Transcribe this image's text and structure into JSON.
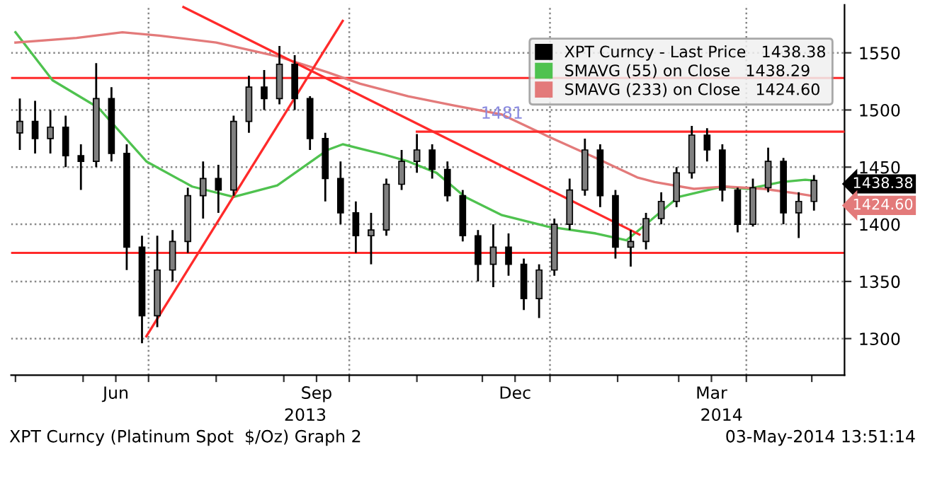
{
  "chart_data": {
    "type": "candlestick",
    "series": [
      {
        "name": "XPT Curncy - Last Price   1438.38",
        "color": "#000000",
        "x": [
          "2013-05-03",
          "2013-05-10",
          "2013-05-17",
          "2013-05-24",
          "2013-05-31",
          "2013-06-07",
          "2013-06-14",
          "2013-06-21",
          "2013-06-28",
          "2013-07-05",
          "2013-07-12",
          "2013-07-19",
          "2013-07-26",
          "2013-08-02",
          "2013-08-09",
          "2013-08-16",
          "2013-08-23",
          "2013-08-30",
          "2013-09-06",
          "2013-09-13",
          "2013-09-20",
          "2013-09-27",
          "2013-10-04",
          "2013-10-11",
          "2013-10-18",
          "2013-10-25",
          "2013-11-01",
          "2013-11-08",
          "2013-11-15",
          "2013-11-22",
          "2013-11-29",
          "2013-12-06",
          "2013-12-13",
          "2013-12-20",
          "2013-12-27",
          "2014-01-03",
          "2014-01-10",
          "2014-01-17",
          "2014-01-24",
          "2014-01-31",
          "2014-02-07",
          "2014-02-14",
          "2014-02-21",
          "2014-02-28",
          "2014-03-07",
          "2014-03-14",
          "2014-03-21",
          "2014-03-28",
          "2014-04-04",
          "2014-04-11",
          "2014-04-18",
          "2014-04-25",
          "2014-05-02"
        ],
        "ohlc": [
          [
            1480,
            1510,
            1465,
            1490
          ],
          [
            1490,
            1508,
            1462,
            1475
          ],
          [
            1475,
            1500,
            1462,
            1485
          ],
          [
            1485,
            1495,
            1450,
            1460
          ],
          [
            1460,
            1470,
            1430,
            1455
          ],
          [
            1455,
            1541,
            1450,
            1510
          ],
          [
            1510,
            1520,
            1455,
            1462
          ],
          [
            1462,
            1470,
            1360,
            1380
          ],
          [
            1380,
            1390,
            1296,
            1320
          ],
          [
            1320,
            1390,
            1310,
            1360
          ],
          [
            1360,
            1395,
            1350,
            1385
          ],
          [
            1385,
            1432,
            1375,
            1425
          ],
          [
            1425,
            1455,
            1405,
            1440
          ],
          [
            1440,
            1452,
            1410,
            1430
          ],
          [
            1430,
            1495,
            1425,
            1490
          ],
          [
            1490,
            1530,
            1480,
            1520
          ],
          [
            1520,
            1535,
            1500,
            1510
          ],
          [
            1510,
            1556,
            1505,
            1540
          ],
          [
            1540,
            1548,
            1500,
            1510
          ],
          [
            1510,
            1512,
            1465,
            1475
          ],
          [
            1475,
            1480,
            1420,
            1440
          ],
          [
            1440,
            1455,
            1400,
            1410
          ],
          [
            1410,
            1420,
            1375,
            1390
          ],
          [
            1390,
            1410,
            1365,
            1395
          ],
          [
            1395,
            1440,
            1390,
            1435
          ],
          [
            1435,
            1465,
            1430,
            1455
          ],
          [
            1455,
            1479,
            1445,
            1465
          ],
          [
            1465,
            1470,
            1440,
            1448
          ],
          [
            1448,
            1455,
            1420,
            1425
          ],
          [
            1425,
            1430,
            1385,
            1390
          ],
          [
            1390,
            1395,
            1350,
            1365
          ],
          [
            1365,
            1400,
            1345,
            1380
          ],
          [
            1380,
            1392,
            1355,
            1365
          ],
          [
            1365,
            1370,
            1325,
            1335
          ],
          [
            1335,
            1365,
            1318,
            1360
          ],
          [
            1360,
            1405,
            1355,
            1400
          ],
          [
            1400,
            1440,
            1395,
            1430
          ],
          [
            1430,
            1475,
            1425,
            1465
          ],
          [
            1465,
            1470,
            1415,
            1425
          ],
          [
            1425,
            1430,
            1370,
            1380
          ],
          [
            1380,
            1395,
            1363,
            1385
          ],
          [
            1385,
            1410,
            1378,
            1405
          ],
          [
            1405,
            1428,
            1400,
            1420
          ],
          [
            1420,
            1450,
            1415,
            1445
          ],
          [
            1445,
            1486,
            1440,
            1478
          ],
          [
            1478,
            1484,
            1455,
            1465
          ],
          [
            1465,
            1470,
            1420,
            1430
          ],
          [
            1430,
            1432,
            1393,
            1400
          ],
          [
            1400,
            1440,
            1398,
            1432
          ],
          [
            1432,
            1467,
            1428,
            1455
          ],
          [
            1455,
            1458,
            1400,
            1410
          ],
          [
            1410,
            1428,
            1388,
            1420
          ],
          [
            1420,
            1443,
            1412,
            1438.38
          ]
        ]
      },
      {
        "type": "line",
        "name": "SMAVG (55) on Close   1438.29",
        "color": "#4fc24f",
        "x": [
          "2013-05-01",
          "2013-05-18",
          "2013-06-08",
          "2013-06-30",
          "2013-07-21",
          "2013-08-09",
          "2013-08-29",
          "2013-09-21",
          "2013-09-28",
          "2013-10-17",
          "2013-10-28",
          "2013-11-10",
          "2013-11-23",
          "2013-12-10",
          "2013-12-31",
          "2014-01-22",
          "2014-02-05",
          "2014-02-14",
          "2014-03-01",
          "2014-03-21",
          "2014-04-02",
          "2014-04-17",
          "2014-04-28",
          "2014-05-02"
        ],
        "values": [
          1568,
          1526,
          1502,
          1455,
          1433,
          1424,
          1434,
          1465,
          1470,
          1461,
          1455,
          1445,
          1424,
          1408,
          1398,
          1392,
          1386,
          1400,
          1424,
          1433,
          1431,
          1437,
          1439,
          1438.29
        ]
      },
      {
        "type": "line",
        "name": "SMAVG (233) on Close   1424.60",
        "color": "#e37a7a",
        "x": [
          "2013-05-01",
          "2013-05-29",
          "2013-06-19",
          "2013-07-06",
          "2013-08-01",
          "2013-08-29",
          "2013-09-21",
          "2013-10-06",
          "2013-10-28",
          "2013-11-18",
          "2013-12-10",
          "2013-12-31",
          "2014-01-22",
          "2014-02-10",
          "2014-02-18",
          "2014-03-08",
          "2014-03-22",
          "2014-04-09",
          "2014-04-24",
          "2014-05-02"
        ],
        "values": [
          1559,
          1563,
          1568,
          1565,
          1559,
          1547,
          1533,
          1523,
          1512,
          1504,
          1496,
          1477,
          1458,
          1441,
          1437,
          1431,
          1433,
          1431,
          1427,
          1424.6
        ]
      },
      {
        "type": "line",
        "color": "#ff2a2a",
        "x": [
          "2013-07-17",
          "2014-02-11"
        ],
        "values": [
          1590,
          1391
        ]
      },
      {
        "type": "line",
        "color": "#ff2a2a",
        "x": [
          "2013-06-30",
          "2013-09-28"
        ],
        "values": [
          1302,
          1578
        ]
      },
      {
        "type": "line",
        "color": "#ff2a2a",
        "x": [
          "2013-11-01",
          "2014-05-16"
        ],
        "values": [
          1481,
          1481
        ]
      }
    ],
    "ref_lines": [
      {
        "axis": "y",
        "value": 1528,
        "color": "#ff2a2a"
      },
      {
        "axis": "y",
        "value": 1375,
        "color": "#ff2a2a"
      },
      {
        "axis": "x",
        "value": "2013-07-01",
        "color": "#888888",
        "line_style": "dotted"
      },
      {
        "axis": "x",
        "value": "2013-10-01",
        "color": "#888888",
        "line_style": "dotted"
      },
      {
        "axis": "x",
        "value": "2014-01-01",
        "color": "#888888",
        "line_style": "dotted"
      },
      {
        "axis": "x",
        "value": "2014-04-01",
        "color": "#888888",
        "line_style": "dotted"
      }
    ],
    "xlim": [
      "2013-04-29",
      "2014-05-16"
    ],
    "xticks": [
      {
        "value": "2013-05-01",
        "label": null
      },
      {
        "value": "2013-06-01",
        "label": null
      },
      {
        "value": "2013-06-16",
        "label": "Jun"
      },
      {
        "value": "2013-07-01",
        "label": null
      },
      {
        "value": "2013-08-01",
        "label": null
      },
      {
        "value": "2013-09-01",
        "label": null
      },
      {
        "value": "2013-09-16",
        "label": "Sep"
      },
      {
        "value": "2013-10-01",
        "label": null
      },
      {
        "value": "2013-11-01",
        "label": null
      },
      {
        "value": "2013-12-01",
        "label": null
      },
      {
        "value": "2013-12-16",
        "label": "Dec"
      },
      {
        "value": "2014-01-01",
        "label": null
      },
      {
        "value": "2014-02-01",
        "label": null
      },
      {
        "value": "2014-03-01",
        "label": null
      },
      {
        "value": "2014-03-16",
        "label": "Mar"
      },
      {
        "value": "2014-04-01",
        "label": null
      },
      {
        "value": "2014-05-01",
        "label": null
      }
    ],
    "ylim": [
      1268,
      1592
    ],
    "yticks": [
      1300,
      1350,
      1400,
      1450,
      1500,
      1550
    ],
    "grid": "y",
    "legend": "top right",
    "annotations": [
      {
        "text": "1481",
        "x": "2013-12-10",
        "y": 1481
      },
      {
        "text": "1438.38",
        "x": "2014-05-02",
        "y": 1438.38
      },
      {
        "text": "1424.60",
        "x": "2014-05-02",
        "y": 1424.6
      },
      "2013",
      "2014",
      "XPT Curncy (Platinum Spot  $/Oz) Graph 2",
      "03-May-2014 13:51:14"
    ]
  }
}
